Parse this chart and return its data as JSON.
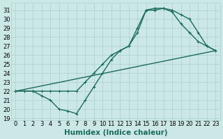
{
  "xlabel": "Humidex (Indice chaleur)",
  "background_color": "#cce8e6",
  "grid_color": "#aacfcf",
  "line_color": "#1a6b5a",
  "xlim": [
    -0.5,
    23.5
  ],
  "ylim": [
    18.8,
    31.8
  ],
  "xticks": [
    0,
    1,
    2,
    3,
    4,
    5,
    6,
    7,
    8,
    9,
    10,
    11,
    12,
    13,
    14,
    15,
    16,
    17,
    18,
    19,
    20,
    21,
    22,
    23
  ],
  "yticks": [
    19,
    20,
    21,
    22,
    23,
    24,
    25,
    26,
    27,
    28,
    29,
    30,
    31
  ],
  "curve1_x": [
    0,
    1,
    2,
    3,
    4,
    5,
    6,
    7,
    8,
    9,
    10,
    11,
    12,
    13,
    14,
    15,
    16,
    17,
    18,
    19,
    20,
    21,
    22,
    23
  ],
  "curve1_y": [
    22,
    22,
    22,
    21.5,
    21,
    20,
    19.8,
    19.5,
    21,
    22.5,
    24,
    25.5,
    26.5,
    27,
    29,
    31,
    31.2,
    31.2,
    31,
    30.5,
    30,
    28.5,
    27,
    26.5
  ],
  "curve2_x": [
    0,
    1,
    2,
    3,
    4,
    5,
    6,
    7,
    8,
    9,
    10,
    11,
    12,
    13,
    14,
    15,
    16,
    17,
    18,
    19,
    20,
    21,
    22,
    23
  ],
  "curve2_y": [
    22,
    22,
    22,
    22,
    22,
    22,
    22,
    22,
    23,
    24,
    25,
    26,
    26.5,
    27,
    28.5,
    31,
    31,
    31.2,
    30.8,
    29.5,
    28.5,
    27.5,
    27,
    26.5
  ],
  "line3_x": [
    0,
    23
  ],
  "line3_y": [
    22,
    26.5
  ],
  "ms": 3.5,
  "lw": 1.0,
  "tick_fs": 6,
  "xlabel_fs": 7.5
}
